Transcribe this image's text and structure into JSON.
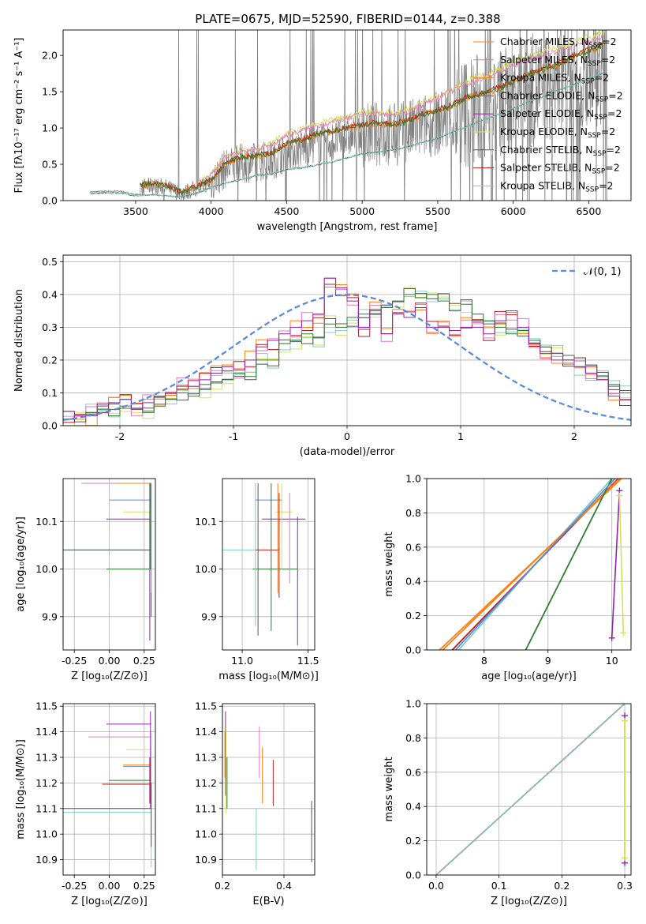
{
  "figure": {
    "title": "PLATE=0675, MJD=52590, FIBERID=0144, z=0.388"
  },
  "colors": {
    "chabrier_miles": "#ff7f0e",
    "salpeter_miles": "#e377c2",
    "kroupa_miles": "#ff7f0e",
    "chabrier_elodie": "#2e7d32",
    "salpeter_elodie": "#8e24aa",
    "kroupa_elodie": "#d4e157",
    "chabrier_stelib": "#555555",
    "salpeter_stelib": "#b71c1c",
    "kroupa_stelib": "#80cbc4",
    "data": "#808080",
    "gauss": "#5b8bd9"
  },
  "chart_data": [
    {
      "id": "spectrum",
      "type": "line",
      "xlabel": "wavelength [Angstrom, rest frame]",
      "ylabel": "Flux [f$_\\lambda$10$^{-17}$ erg cm$^{-2}$ s$^{-1}$ A$^{-1}$]",
      "ylabel_display": "Flux [fλ10⁻¹⁷ erg cm⁻² s⁻¹ A⁻¹]",
      "xlim": [
        3020,
        6780
      ],
      "ylim": [
        0,
        2.35
      ],
      "xticks": [
        3500,
        4000,
        4500,
        5000,
        5500,
        6000,
        6500
      ],
      "yticks": [
        0.0,
        0.5,
        1.0,
        1.5,
        2.0
      ],
      "legend": [
        "Chabrier MILES, N$_{SSP}$=2",
        "Salpeter MILES, N$_{SSP}$=2",
        "Kroupa MILES, N$_{SSP}$=2",
        "Chabrier ELODIE, N$_{SSP}$=2",
        "Salpeter ELODIE, N$_{SSP}$=2",
        "Kroupa ELODIE, N$_{SSP}$=2",
        "Chabrier STELIB, N$_{SSP}$=2",
        "Salpeter STELIB, N$_{SSP}$=2",
        "Kroupa STELIB, N$_{SSP}$=2"
      ],
      "legend_display": [
        [
          "Chabrier MILES, N",
          "SSP",
          "=2"
        ],
        [
          "Salpeter MILES, N",
          "SSP",
          "=2"
        ],
        [
          "Kroupa MILES, N",
          "SSP",
          "=2"
        ],
        [
          "Chabrier ELODIE, N",
          "SSP",
          "=2"
        ],
        [
          "Salpeter ELODIE, N",
          "SSP",
          "=2"
        ],
        [
          "Kroupa ELODIE, N",
          "SSP",
          "=2"
        ],
        [
          "Chabrier STELIB, N",
          "SSP",
          "=2"
        ],
        [
          "Salpeter STELIB, N",
          "SSP",
          "=2"
        ],
        [
          "Kroupa STELIB, N",
          "SSP",
          "=2"
        ]
      ],
      "legend_colors": [
        "#ff7f0e",
        "#e377c2",
        "#ff7f0e",
        "#2e7d32",
        "#8e24aa",
        "#d4e157",
        "#555555",
        "#b71c1c",
        "#80cbc4"
      ],
      "legend_loc": "top-right",
      "model_miles": {
        "x": [
          3530,
          3600,
          3700,
          3800,
          3900,
          4000,
          4100,
          4200,
          4300,
          4400,
          4500,
          4600,
          4700,
          4800,
          4900,
          5000,
          5100,
          5200,
          5300,
          5400,
          5500,
          5600,
          5700,
          5800,
          5900,
          6000,
          6100,
          6200,
          6300,
          6400,
          6500,
          6600
        ],
        "y": [
          0.22,
          0.25,
          0.22,
          0.12,
          0.2,
          0.3,
          0.55,
          0.62,
          0.65,
          0.68,
          0.82,
          0.88,
          0.95,
          1.0,
          1.05,
          1.1,
          1.12,
          1.1,
          1.15,
          1.25,
          1.3,
          1.38,
          1.5,
          1.55,
          1.62,
          1.72,
          1.82,
          1.9,
          1.98,
          2.08,
          2.17,
          2.26
        ]
      },
      "model_elodie": {
        "x": [
          3900,
          4000,
          4100,
          4200,
          4300,
          4400,
          4500,
          4600,
          4700,
          4800,
          4900,
          5000,
          5100,
          5200,
          5300,
          5400,
          5500,
          5600,
          5700,
          5800,
          5900,
          6000,
          6100,
          6200,
          6300,
          6400,
          6500,
          6600
        ],
        "y": [
          0.22,
          0.35,
          0.62,
          0.7,
          0.72,
          0.78,
          0.92,
          0.98,
          1.05,
          1.1,
          1.15,
          1.22,
          1.22,
          1.2,
          1.25,
          1.35,
          1.45,
          1.55,
          1.65,
          1.72,
          1.8,
          1.9,
          1.98,
          2.05,
          2.1,
          2.18,
          2.25,
          2.3
        ]
      },
      "model_stelib": {
        "x": [
          3200,
          3300,
          3400,
          3500,
          3600,
          3700,
          3800,
          3900,
          4000,
          4100,
          4200,
          4300,
          4400,
          4500,
          4600,
          4700,
          4800,
          4900,
          5000,
          5100,
          5200,
          5300,
          5400,
          5500,
          5600,
          5700,
          5800,
          5900,
          6000,
          6100,
          6200,
          6300,
          6400,
          6500,
          6600
        ],
        "y": [
          0.12,
          0.13,
          0.13,
          0.08,
          0.1,
          0.08,
          0.06,
          0.12,
          0.22,
          0.3,
          0.35,
          0.42,
          0.45,
          0.52,
          0.55,
          0.6,
          0.65,
          0.72,
          0.78,
          0.82,
          0.85,
          0.9,
          0.98,
          1.05,
          1.15,
          1.25,
          1.35,
          1.45,
          1.55,
          1.65,
          1.75,
          1.85,
          1.95,
          2.05,
          2.15
        ]
      }
    },
    {
      "id": "residuals",
      "type": "line",
      "xlabel": "(data-model)/error",
      "ylabel": "Normed distribution",
      "xlim": [
        -2.5,
        2.5
      ],
      "ylim": [
        0,
        0.52
      ],
      "xticks": [
        -2,
        -1,
        0,
        1,
        2
      ],
      "yticks": [
        0.0,
        0.1,
        0.2,
        0.3,
        0.4,
        0.5
      ],
      "grid": true,
      "legend": [
        "$\\mathcal{N}(0,1)$"
      ],
      "legend_display": "𝒩(0, 1)",
      "legend_loc": "top-right",
      "bin_edges_start": -2.5,
      "bin_width": 0.1,
      "hist_chabrier_elodie": [
        0.02,
        0.03,
        0.04,
        0.05,
        0.03,
        0.06,
        0.05,
        0.04,
        0.06,
        0.08,
        0.1,
        0.09,
        0.11,
        0.13,
        0.14,
        0.16,
        0.15,
        0.2,
        0.2,
        0.25,
        0.26,
        0.28,
        0.27,
        0.31,
        0.3,
        0.33,
        0.34,
        0.34,
        0.36,
        0.38,
        0.4,
        0.39,
        0.4,
        0.38,
        0.35,
        0.37,
        0.34,
        0.32,
        0.3,
        0.28,
        0.29,
        0.26,
        0.24,
        0.22,
        0.2,
        0.18,
        0.16,
        0.15,
        0.12,
        0.1
      ],
      "hist_salpeter_elodie": [
        0.02,
        0.03,
        0.03,
        0.06,
        0.07,
        0.08,
        0.05,
        0.07,
        0.09,
        0.1,
        0.12,
        0.12,
        0.14,
        0.16,
        0.18,
        0.17,
        0.2,
        0.24,
        0.26,
        0.28,
        0.3,
        0.32,
        0.34,
        0.45,
        0.42,
        0.38,
        0.3,
        0.35,
        0.28,
        0.34,
        0.33,
        0.36,
        0.3,
        0.3,
        0.29,
        0.3,
        0.3,
        0.28,
        0.32,
        0.35,
        0.3,
        0.25,
        0.22,
        0.2,
        0.2,
        0.18,
        0.16,
        0.14,
        0.09,
        0.08
      ],
      "gauss_mu": 0,
      "gauss_sigma": 1
    },
    {
      "id": "age-vs-Z",
      "type": "scatter",
      "xlabel": "Z [log$_{10}$(Z/Z$_\\odot$)]",
      "xlabel_display": "Z [log₁₀(Z/Z⊙)]",
      "ylabel": "age  [log$_{10}$(age/yr)]",
      "ylabel_display": "age  [log₁₀(age/yr)]",
      "xlim": [
        -0.33,
        0.33
      ],
      "ylim": [
        9.83,
        10.19
      ],
      "xticks": [
        "-0.25",
        "0.00",
        "0.25"
      ],
      "yticks": [
        "9.9",
        "10.0",
        "10.1"
      ],
      "grid": true
    },
    {
      "id": "age-vs-mass",
      "type": "scatter",
      "xlabel": "mass [log$_{10}$(M/M$_\\odot$)]",
      "xlabel_display": "mass [log₁₀(M/M⊙)]",
      "xlim": [
        10.85,
        11.55
      ],
      "ylim": [
        9.83,
        10.19
      ],
      "xticks": [
        "11.0",
        "11.5"
      ],
      "yticks": [
        "9.9",
        "10.0",
        "10.1"
      ],
      "grid": true
    },
    {
      "id": "weight-vs-age",
      "type": "line",
      "xlabel": "age  [log$_{10}$(age/yr)]",
      "xlabel_display": "age  [log₁₀(age/yr)]",
      "ylabel": "mass weight",
      "xlim": [
        7.1,
        10.3
      ],
      "ylim": [
        0,
        1.0
      ],
      "xticks": [
        "8",
        "9",
        "10"
      ],
      "yticks": [
        "0.0",
        "0.2",
        "0.4",
        "0.6",
        "0.8",
        "1.0"
      ],
      "grid": true
    },
    {
      "id": "mass-vs-Z",
      "type": "scatter",
      "xlabel": "Z [log$_{10}$(Z/Z$_\\odot$)]",
      "xlabel_display": "Z [log₁₀(Z/Z⊙)]",
      "ylabel": "mass [log$_{10}$(M/M$_\\odot$)]",
      "ylabel_display": "mass [log₁₀(M/M⊙)]",
      "xlim": [
        -0.33,
        0.33
      ],
      "ylim": [
        10.84,
        11.51
      ],
      "xticks": [
        "-0.25",
        "0.00",
        "0.25"
      ],
      "yticks": [
        "10.9",
        "11.0",
        "11.1",
        "11.2",
        "11.3",
        "11.4",
        "11.5"
      ],
      "grid": true
    },
    {
      "id": "mass-vs-ebv",
      "type": "scatter",
      "xlabel": "E(B-V)",
      "xlim": [
        0.2,
        0.5
      ],
      "ylim": [
        10.84,
        11.51
      ],
      "xticks": [
        "0.2",
        "0.4"
      ],
      "yticks": [
        "10.9",
        "11.0",
        "11.1",
        "11.2",
        "11.3",
        "11.4",
        "11.5"
      ],
      "grid": true
    },
    {
      "id": "weight-vs-Z",
      "type": "line",
      "xlabel": "Z [log$_{10}$(Z/Z$_\\odot$)]",
      "xlabel_display": "Z [log₁₀(Z/Z⊙)]",
      "ylabel": "mass weight",
      "xlim": [
        -0.015,
        0.31
      ],
      "ylim": [
        0,
        1.0
      ],
      "xticks": [
        "0.0",
        "0.1",
        "0.2",
        "0.3"
      ],
      "yticks": [
        "0.0",
        "0.2",
        "0.4",
        "0.6",
        "0.8",
        "1.0"
      ],
      "grid": true
    }
  ]
}
